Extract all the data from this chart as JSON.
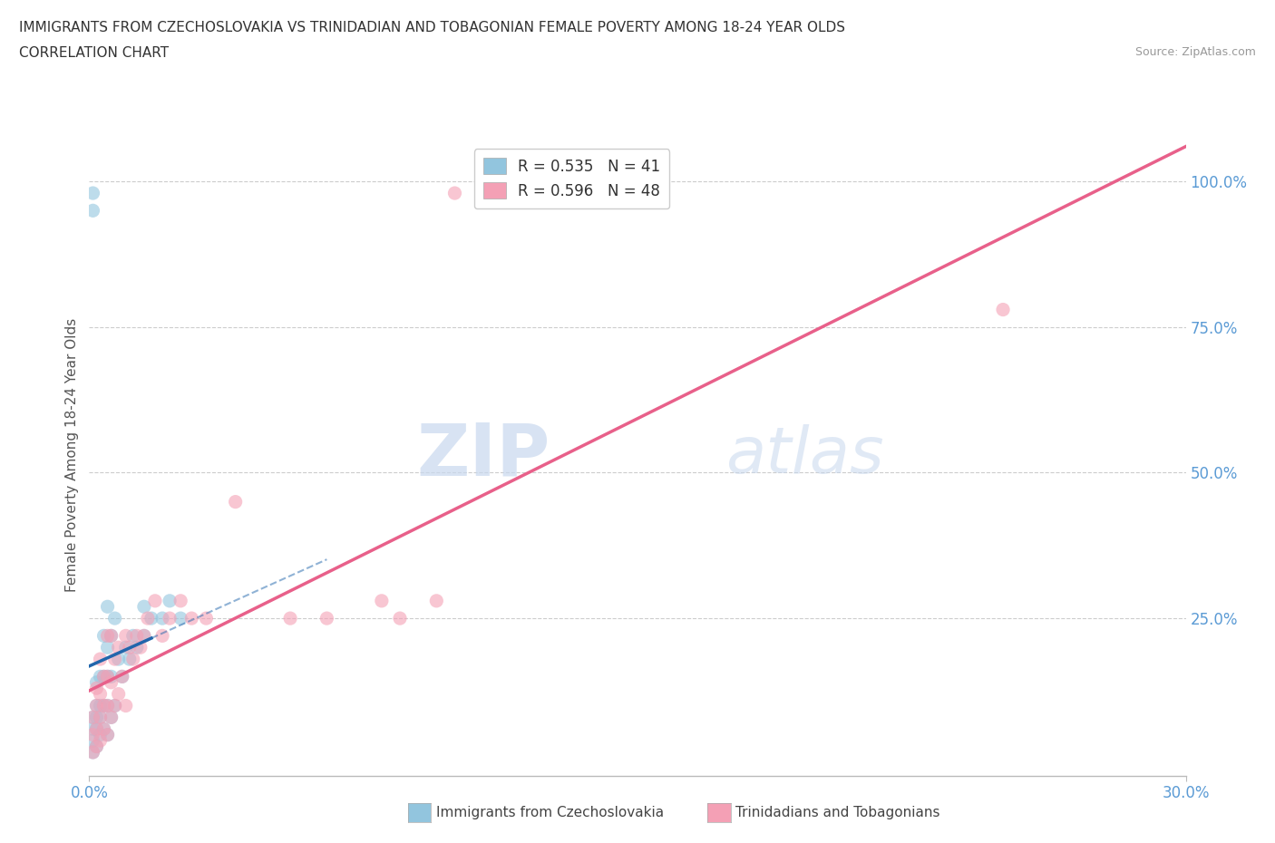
{
  "title_line1": "IMMIGRANTS FROM CZECHOSLOVAKIA VS TRINIDADIAN AND TOBAGONIAN FEMALE POVERTY AMONG 18-24 YEAR OLDS",
  "title_line2": "CORRELATION CHART",
  "source_text": "Source: ZipAtlas.com",
  "ylabel": "Female Poverty Among 18-24 Year Olds",
  "xlim": [
    0.0,
    0.3
  ],
  "ylim": [
    -0.02,
    1.08
  ],
  "xticks": [
    0.0,
    0.3
  ],
  "xticklabels": [
    "0.0%",
    "30.0%"
  ],
  "yticks": [
    0.25,
    0.5,
    0.75,
    1.0
  ],
  "yticklabels": [
    "25.0%",
    "50.0%",
    "75.0%",
    "100.0%"
  ],
  "legend_r1": "R = 0.535",
  "legend_n1": "N = 41",
  "legend_r2": "R = 0.596",
  "legend_n2": "N = 48",
  "color_blue": "#92c5de",
  "color_pink": "#f4a0b5",
  "color_blue_line": "#2166ac",
  "color_pink_line": "#e8608a",
  "watermark_zip": "ZIP",
  "watermark_atlas": "atlas",
  "label1": "Immigrants from Czechoslovakia",
  "label2": "Trinidadians and Tobagonians",
  "blue_x": [
    0.001,
    0.001,
    0.001,
    0.001,
    0.002,
    0.002,
    0.002,
    0.002,
    0.002,
    0.003,
    0.003,
    0.003,
    0.003,
    0.004,
    0.004,
    0.004,
    0.004,
    0.005,
    0.005,
    0.005,
    0.005,
    0.005,
    0.006,
    0.006,
    0.006,
    0.007,
    0.007,
    0.008,
    0.009,
    0.01,
    0.011,
    0.012,
    0.013,
    0.015,
    0.015,
    0.017,
    0.02,
    0.022,
    0.025,
    0.001,
    0.001
  ],
  "blue_y": [
    0.02,
    0.04,
    0.06,
    0.08,
    0.03,
    0.06,
    0.08,
    0.1,
    0.14,
    0.05,
    0.08,
    0.1,
    0.15,
    0.06,
    0.1,
    0.15,
    0.22,
    0.05,
    0.1,
    0.15,
    0.2,
    0.27,
    0.08,
    0.15,
    0.22,
    0.1,
    0.25,
    0.18,
    0.15,
    0.2,
    0.18,
    0.22,
    0.2,
    0.22,
    0.27,
    0.25,
    0.25,
    0.28,
    0.25,
    0.95,
    0.98
  ],
  "pink_x": [
    0.001,
    0.001,
    0.001,
    0.002,
    0.002,
    0.002,
    0.002,
    0.003,
    0.003,
    0.003,
    0.003,
    0.004,
    0.004,
    0.004,
    0.005,
    0.005,
    0.005,
    0.005,
    0.006,
    0.006,
    0.006,
    0.007,
    0.007,
    0.008,
    0.008,
    0.009,
    0.01,
    0.01,
    0.011,
    0.012,
    0.013,
    0.014,
    0.015,
    0.016,
    0.018,
    0.02,
    0.022,
    0.025,
    0.028,
    0.032,
    0.04,
    0.055,
    0.065,
    0.08,
    0.085,
    0.095,
    0.25,
    0.1
  ],
  "pink_y": [
    0.02,
    0.05,
    0.08,
    0.03,
    0.06,
    0.1,
    0.13,
    0.04,
    0.08,
    0.12,
    0.18,
    0.06,
    0.1,
    0.15,
    0.05,
    0.1,
    0.15,
    0.22,
    0.08,
    0.14,
    0.22,
    0.1,
    0.18,
    0.12,
    0.2,
    0.15,
    0.1,
    0.22,
    0.2,
    0.18,
    0.22,
    0.2,
    0.22,
    0.25,
    0.28,
    0.22,
    0.25,
    0.28,
    0.25,
    0.25,
    0.45,
    0.25,
    0.25,
    0.28,
    0.25,
    0.28,
    0.78,
    0.98
  ]
}
